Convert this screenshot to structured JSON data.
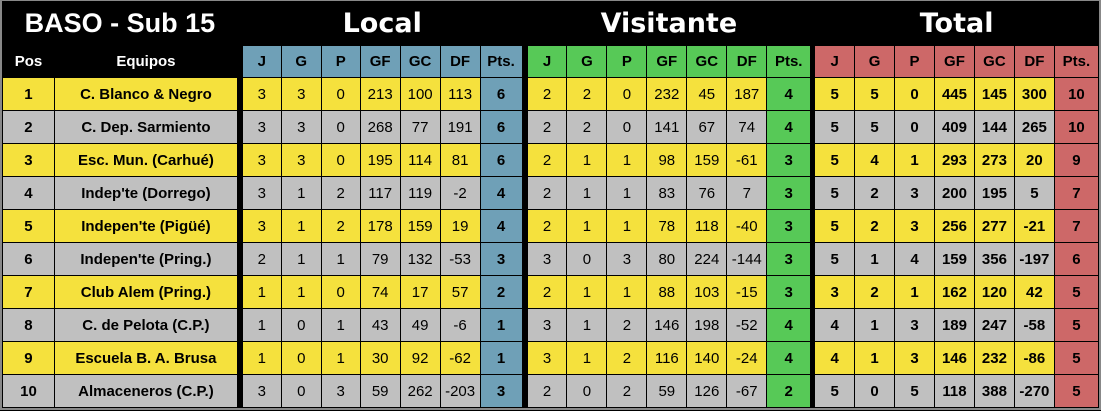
{
  "title": "BASO - Sub 15",
  "sections": {
    "local": "Local",
    "visitante": "Visitante",
    "total": "Total"
  },
  "headers": {
    "pos": "Pos",
    "equipos": "Equipos",
    "stats": [
      "J",
      "G",
      "P",
      "GF",
      "GC",
      "DF",
      "Pts."
    ]
  },
  "colors": {
    "row_odd": "#f5e13d",
    "row_even": "#c0c0c0",
    "local": "#6fa0b7",
    "visitante": "#57c957",
    "total": "#cd6868"
  },
  "rows": [
    {
      "pos": "1",
      "team": "C. Blanco & Negro",
      "local": [
        "3",
        "3",
        "0",
        "213",
        "100",
        "113",
        "6"
      ],
      "visitante": [
        "2",
        "2",
        "0",
        "232",
        "45",
        "187",
        "4"
      ],
      "total": [
        "5",
        "5",
        "0",
        "445",
        "145",
        "300",
        "10"
      ]
    },
    {
      "pos": "2",
      "team": "C. Dep. Sarmiento",
      "local": [
        "3",
        "3",
        "0",
        "268",
        "77",
        "191",
        "6"
      ],
      "visitante": [
        "2",
        "2",
        "0",
        "141",
        "67",
        "74",
        "4"
      ],
      "total": [
        "5",
        "5",
        "0",
        "409",
        "144",
        "265",
        "10"
      ]
    },
    {
      "pos": "3",
      "team": "Esc. Mun. (Carhué)",
      "local": [
        "3",
        "3",
        "0",
        "195",
        "114",
        "81",
        "6"
      ],
      "visitante": [
        "2",
        "1",
        "1",
        "98",
        "159",
        "-61",
        "3"
      ],
      "total": [
        "5",
        "4",
        "1",
        "293",
        "273",
        "20",
        "9"
      ]
    },
    {
      "pos": "4",
      "team": "Indep'te (Dorrego)",
      "local": [
        "3",
        "1",
        "2",
        "117",
        "119",
        "-2",
        "4"
      ],
      "visitante": [
        "2",
        "1",
        "1",
        "83",
        "76",
        "7",
        "3"
      ],
      "total": [
        "5",
        "2",
        "3",
        "200",
        "195",
        "5",
        "7"
      ]
    },
    {
      "pos": "5",
      "team": "Indepen'te (Pigüé)",
      "local": [
        "3",
        "1",
        "2",
        "178",
        "159",
        "19",
        "4"
      ],
      "visitante": [
        "2",
        "1",
        "1",
        "78",
        "118",
        "-40",
        "3"
      ],
      "total": [
        "5",
        "2",
        "3",
        "256",
        "277",
        "-21",
        "7"
      ]
    },
    {
      "pos": "6",
      "team": "Indepen'te (Pring.)",
      "local": [
        "2",
        "1",
        "1",
        "79",
        "132",
        "-53",
        "3"
      ],
      "visitante": [
        "3",
        "0",
        "3",
        "80",
        "224",
        "-144",
        "3"
      ],
      "total": [
        "5",
        "1",
        "4",
        "159",
        "356",
        "-197",
        "6"
      ]
    },
    {
      "pos": "7",
      "team": "Club Alem (Pring.)",
      "local": [
        "1",
        "1",
        "0",
        "74",
        "17",
        "57",
        "2"
      ],
      "visitante": [
        "2",
        "1",
        "1",
        "88",
        "103",
        "-15",
        "3"
      ],
      "total": [
        "3",
        "2",
        "1",
        "162",
        "120",
        "42",
        "5"
      ]
    },
    {
      "pos": "8",
      "team": "C. de Pelota (C.P.)",
      "local": [
        "1",
        "0",
        "1",
        "43",
        "49",
        "-6",
        "1"
      ],
      "visitante": [
        "3",
        "1",
        "2",
        "146",
        "198",
        "-52",
        "4"
      ],
      "total": [
        "4",
        "1",
        "3",
        "189",
        "247",
        "-58",
        "5"
      ]
    },
    {
      "pos": "9",
      "team": "Escuela B. A. Brusa",
      "local": [
        "1",
        "0",
        "1",
        "30",
        "92",
        "-62",
        "1"
      ],
      "visitante": [
        "3",
        "1",
        "2",
        "116",
        "140",
        "-24",
        "4"
      ],
      "total": [
        "4",
        "1",
        "3",
        "146",
        "232",
        "-86",
        "5"
      ]
    },
    {
      "pos": "10",
      "team": "Almaceneros (C.P.)",
      "local": [
        "3",
        "0",
        "3",
        "59",
        "262",
        "-203",
        "3"
      ],
      "visitante": [
        "2",
        "0",
        "2",
        "59",
        "126",
        "-67",
        "2"
      ],
      "total": [
        "5",
        "0",
        "5",
        "118",
        "388",
        "-270",
        "5"
      ]
    }
  ]
}
